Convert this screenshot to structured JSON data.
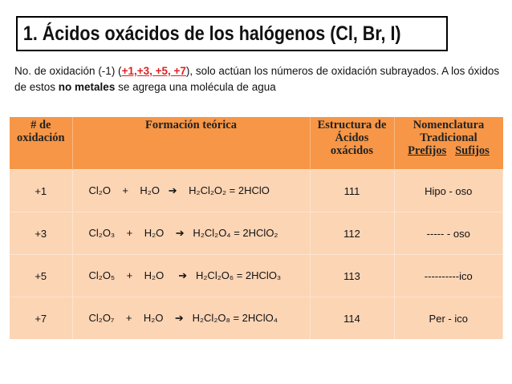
{
  "title": "1. Ácidos oxácidos de los halógenos (Cl, Br, I)",
  "intro": {
    "before": "No. de oxidación (-1) (",
    "highlight": "+1,+3, +5, +7",
    "middle": "), solo actúan los números de oxidación subrayados. A los óxidos de estos ",
    "bold": "no metales",
    "after": " se agrega una molécula de agua"
  },
  "table": {
    "headers": {
      "ox1": "# de",
      "ox2": "oxidación",
      "form": "Formación teórica",
      "est1": "Estructura de",
      "est2": "Ácidos",
      "est3": "oxácidos",
      "nom1": "Nomenclatura",
      "nom2": "Tradicional",
      "pref": "Prefijos",
      "suf": "Sufijos"
    },
    "rows": [
      {
        "ox": "+1",
        "formula": "Cl₂O    +    H₂O   ➔    H₂Cl₂O₂ = 2HClO",
        "est": "111",
        "nom": "Hipo -   oso"
      },
      {
        "ox": "+3",
        "formula": "Cl₂O₃    +    H₂O    ➔   H₂Cl₂O₄ = 2HClO₂",
        "est": "112",
        "nom": "----- -   oso"
      },
      {
        "ox": "+5",
        "formula": "Cl₂O₅    +    H₂O     ➔   H₂Cl₂O₆ = 2HClO₃",
        "est": "113",
        "nom": "----------ico"
      },
      {
        "ox": "+7",
        "formula": "Cl₂O₇    +    H₂O    ➔   H₂Cl₂O₈ = 2HClO₄",
        "est": "114",
        "nom": "Per -   ico"
      }
    ]
  },
  "colors": {
    "header": "#f79646",
    "row": "#fcd5b5",
    "highlight": "#e02020"
  }
}
